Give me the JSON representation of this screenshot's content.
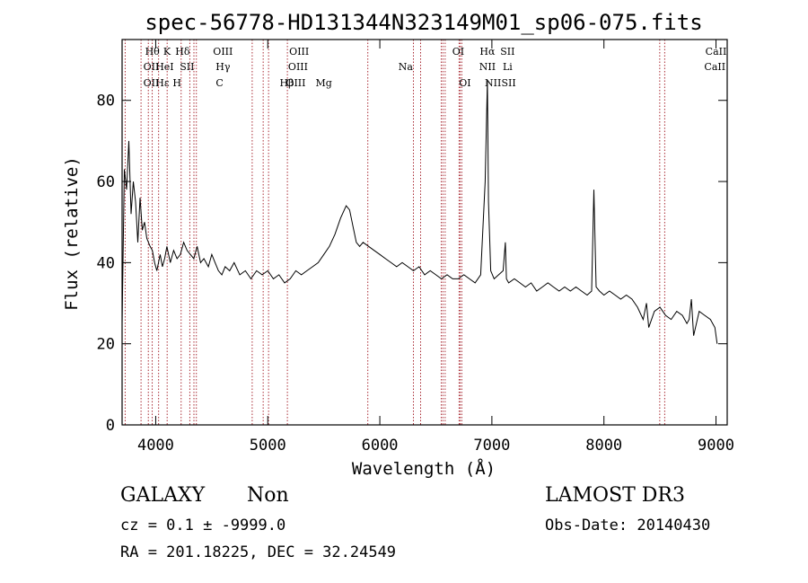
{
  "chart_data": {
    "type": "line",
    "title": "spec-56778-HD131344N323149M01_sp06-075.fits",
    "xlabel": "Wavelength (Å)",
    "ylabel": "Flux (relative)",
    "xlim": [
      3700,
      9100
    ],
    "ylim": [
      0,
      95
    ],
    "x_ticks": [
      4000,
      5000,
      6000,
      7000,
      8000,
      9000
    ],
    "y_ticks": [
      0,
      20,
      40,
      60,
      80
    ],
    "grid": false,
    "line_color": "#000000",
    "marker_color": "#a0141e",
    "spectrum": {
      "x": [
        3700,
        3720,
        3740,
        3760,
        3780,
        3800,
        3820,
        3840,
        3860,
        3880,
        3900,
        3920,
        3950,
        3970,
        3990,
        4010,
        4040,
        4060,
        4080,
        4100,
        4130,
        4160,
        4190,
        4220,
        4250,
        4280,
        4310,
        4340,
        4370,
        4400,
        4430,
        4470,
        4500,
        4530,
        4560,
        4590,
        4620,
        4660,
        4700,
        4750,
        4800,
        4850,
        4900,
        4950,
        5000,
        5050,
        5100,
        5150,
        5200,
        5250,
        5300,
        5350,
        5400,
        5450,
        5500,
        5550,
        5600,
        5650,
        5700,
        5730,
        5760,
        5790,
        5820,
        5850,
        5900,
        5950,
        6000,
        6050,
        6100,
        6150,
        6200,
        6250,
        6300,
        6350,
        6400,
        6450,
        6500,
        6550,
        6600,
        6650,
        6700,
        6750,
        6800,
        6850,
        6900,
        6940,
        6960,
        6970,
        6990,
        7020,
        7060,
        7100,
        7120,
        7130,
        7150,
        7200,
        7250,
        7300,
        7350,
        7400,
        7450,
        7500,
        7550,
        7600,
        7650,
        7700,
        7750,
        7800,
        7850,
        7890,
        7910,
        7930,
        7960,
        8000,
        8050,
        8100,
        8150,
        8200,
        8250,
        8300,
        8350,
        8380,
        8400,
        8450,
        8500,
        8550,
        8600,
        8650,
        8700,
        8740,
        8760,
        8780,
        8800,
        8850,
        8900,
        8950,
        8990,
        9010
      ],
      "y": [
        25,
        63,
        58,
        70,
        52,
        60,
        55,
        45,
        56,
        48,
        50,
        46,
        44,
        43,
        40,
        38,
        42,
        39,
        41,
        44,
        40,
        43,
        41,
        42,
        45,
        43,
        42,
        41,
        44,
        40,
        41,
        39,
        42,
        40,
        38,
        37,
        39,
        38,
        40,
        37,
        38,
        36,
        38,
        37,
        38,
        36,
        37,
        35,
        36,
        38,
        37,
        38,
        39,
        40,
        42,
        44,
        47,
        51,
        54,
        53,
        49,
        45,
        44,
        45,
        44,
        43,
        42,
        41,
        40,
        39,
        40,
        39,
        38,
        39,
        37,
        38,
        37,
        36,
        37,
        36,
        36,
        37,
        36,
        35,
        37,
        60,
        85,
        55,
        38,
        36,
        37,
        38,
        45,
        36,
        35,
        36,
        35,
        34,
        35,
        33,
        34,
        35,
        34,
        33,
        34,
        33,
        34,
        33,
        32,
        33,
        58,
        34,
        33,
        32,
        33,
        32,
        31,
        32,
        31,
        29,
        26,
        30,
        24,
        28,
        29,
        27,
        26,
        28,
        27,
        25,
        26,
        31,
        22,
        28,
        27,
        26,
        24,
        20
      ]
    },
    "lines": [
      {
        "label": "Hθ",
        "x": 3970,
        "row": 0
      },
      {
        "label": "K",
        "x": 4100,
        "row": 0
      },
      {
        "label": "Hδ",
        "x": 4240,
        "row": 0
      },
      {
        "label": "OIII",
        "x": 4600,
        "row": 0
      },
      {
        "label": "OIII",
        "x": 5280,
        "row": 0
      },
      {
        "label": "OI",
        "x": 6700,
        "row": 0
      },
      {
        "label": "Hα",
        "x": 6960,
        "row": 0
      },
      {
        "label": "SII",
        "x": 7140,
        "row": 0
      },
      {
        "label": "CaII",
        "x": 9000,
        "row": 0
      },
      {
        "label": "OII",
        "x": 3960,
        "row": 1
      },
      {
        "label": "HeI",
        "x": 4080,
        "row": 1
      },
      {
        "label": "SII",
        "x": 4280,
        "row": 1
      },
      {
        "label": "Hγ",
        "x": 4600,
        "row": 1
      },
      {
        "label": "OIII",
        "x": 5270,
        "row": 1
      },
      {
        "label": "Na",
        "x": 6230,
        "row": 1
      },
      {
        "label": "NII",
        "x": 6960,
        "row": 1
      },
      {
        "label": "Li",
        "x": 7140,
        "row": 1
      },
      {
        "label": "CaII",
        "x": 8990,
        "row": 1
      },
      {
        "label": "OII",
        "x": 3960,
        "row": 2
      },
      {
        "label": "Hε",
        "x": 4060,
        "row": 2
      },
      {
        "label": "H",
        "x": 4190,
        "row": 2
      },
      {
        "label": "C",
        "x": 4570,
        "row": 2
      },
      {
        "label": "Hβ",
        "x": 5170,
        "row": 2
      },
      {
        "label": "OIII",
        "x": 5250,
        "row": 2
      },
      {
        "label": "Mg",
        "x": 5500,
        "row": 2
      },
      {
        "label": "OI",
        "x": 6760,
        "row": 2
      },
      {
        "label": "NII",
        "x": 7010,
        "row": 2
      },
      {
        "label": "SII",
        "x": 7150,
        "row": 2
      }
    ],
    "marker_lines": [
      3727,
      3869,
      3934,
      3969,
      4026,
      4102,
      4227,
      4304,
      4341,
      4363,
      4861,
      4959,
      5007,
      5175,
      5893,
      6300,
      6364,
      6548,
      6563,
      6583,
      6707,
      6717,
      6731,
      8498,
      8542
    ]
  },
  "footer": {
    "object_class": "GALAXY",
    "subclass": "Non",
    "survey": "LAMOST DR3",
    "cz_line": "cz = 0.1 ± -9999.0",
    "obs_date": "Obs-Date: 20140430",
    "coords": "RA = 201.18225, DEC =  32.24549"
  }
}
